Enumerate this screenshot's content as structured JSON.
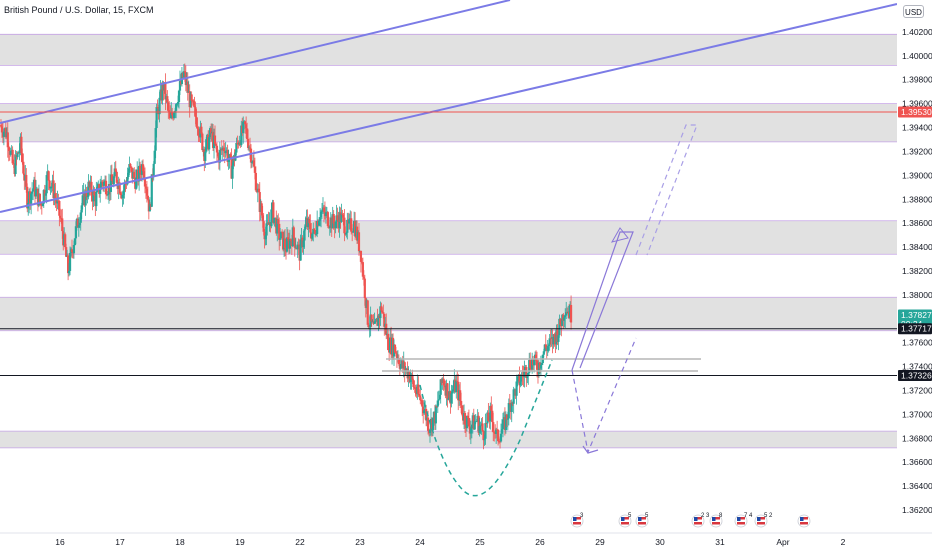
{
  "header": {
    "symbol_title": "British Pound / U.S. Dollar, 15, FXCM",
    "currency": "USD"
  },
  "colors": {
    "up_candle": "#26a69a",
    "down_candle": "#ef5350",
    "channel_line": "#7b7be6",
    "resistance_line": "#ef5350",
    "zone_fill": "#dcdcdc",
    "zone_border": "#c5a3e6",
    "projection_arrow": "#8a78d8",
    "current_price_tag": "#26a69a"
  },
  "price_axis": {
    "labels": [
      "1.40200",
      "1.40000",
      "1.39800",
      "1.39600",
      "1.39400",
      "1.39200",
      "1.39000",
      "1.38800",
      "1.38600",
      "1.38400",
      "1.38200",
      "1.38000",
      "1.37800",
      "1.37600",
      "1.37400",
      "1.37200",
      "1.37000",
      "1.36800",
      "1.36600",
      "1.36400",
      "1.36200"
    ]
  },
  "price_tags": [
    {
      "value": "1.39530",
      "style": "red"
    },
    {
      "value": "1.37827",
      "sub": "00:24",
      "style": "green"
    },
    {
      "value": "1.37717",
      "style": "black"
    },
    {
      "value": "1.37326",
      "style": "black"
    }
  ],
  "time_axis": {
    "labels": [
      "16",
      "17",
      "18",
      "19",
      "22",
      "23",
      "24",
      "25",
      "26",
      "29",
      "30",
      "31",
      "Apr",
      "2"
    ]
  },
  "event_icons": [
    {
      "badge": "3"
    },
    {
      "badge": "5"
    },
    {
      "badge": "5"
    },
    {
      "badge": "2 3"
    },
    {
      "badge": "8"
    },
    {
      "badge": "7 4"
    },
    {
      "badge": "5 2"
    },
    {
      "badge": ""
    }
  ],
  "chart_data": {
    "type": "candlestick",
    "symbol": "British Pound / U.S. Dollar",
    "interval": "15",
    "source": "FXCM",
    "ylim": [
      1.3615,
      1.4035
    ],
    "x_days": [
      "16",
      "17",
      "18",
      "19",
      "22",
      "23",
      "24",
      "25",
      "26",
      "29",
      "30",
      "31",
      "Apr",
      "2"
    ],
    "current_price": 1.37827,
    "countdown": "00:24",
    "horizontal_levels": [
      {
        "price": 1.3953,
        "color": "red"
      },
      {
        "price": 1.37717,
        "color": "black"
      },
      {
        "price": 1.37326,
        "color": "black"
      }
    ],
    "supply_demand_zones": [
      [
        1.3992,
        1.4018
      ],
      [
        1.3928,
        1.396
      ],
      [
        1.3834,
        1.3862
      ],
      [
        1.377,
        1.3798
      ],
      [
        1.3672,
        1.3686
      ]
    ],
    "trend_channel": [
      {
        "from": [
          "15",
          1.395
        ],
        "to": [
          "19",
          1.406
        ]
      },
      {
        "from": [
          "15",
          1.388
        ],
        "to": [
          "2",
          1.405
        ]
      }
    ],
    "price_path": [
      [
        0.0,
        1.3942
      ],
      [
        0.3,
        1.3935
      ],
      [
        0.6,
        1.3905
      ],
      [
        0.9,
        1.3925
      ],
      [
        1.2,
        1.388
      ],
      [
        1.5,
        1.389
      ],
      [
        1.8,
        1.3875
      ],
      [
        2.1,
        1.39
      ],
      [
        2.4,
        1.3885
      ],
      [
        2.7,
        1.386
      ],
      [
        3.0,
        1.382
      ],
      [
        3.3,
        1.385
      ],
      [
        3.6,
        1.3875
      ],
      [
        3.9,
        1.389
      ],
      [
        4.2,
        1.388
      ],
      [
        4.5,
        1.3895
      ],
      [
        4.8,
        1.389
      ],
      [
        5.1,
        1.39
      ],
      [
        5.4,
        1.3885
      ],
      [
        5.7,
        1.3905
      ],
      [
        6.0,
        1.3895
      ],
      [
        6.3,
        1.391
      ],
      [
        6.6,
        1.387
      ],
      [
        6.9,
        1.395
      ],
      [
        7.2,
        1.3975
      ],
      [
        7.5,
        1.3945
      ],
      [
        7.8,
        1.3965
      ],
      [
        8.1,
        1.3985
      ],
      [
        8.4,
        1.396
      ],
      [
        8.7,
        1.3945
      ],
      [
        9.0,
        1.392
      ],
      [
        9.3,
        1.3935
      ],
      [
        9.6,
        1.3915
      ],
      [
        9.9,
        1.3925
      ],
      [
        10.2,
        1.3905
      ],
      [
        10.5,
        1.393
      ],
      [
        10.8,
        1.394
      ],
      [
        11.1,
        1.3915
      ],
      [
        11.4,
        1.388
      ],
      [
        11.7,
        1.385
      ],
      [
        12.0,
        1.387
      ],
      [
        12.3,
        1.385
      ],
      [
        12.6,
        1.384
      ],
      [
        12.9,
        1.385
      ],
      [
        13.2,
        1.3835
      ],
      [
        13.5,
        1.386
      ],
      [
        13.8,
        1.385
      ],
      [
        14.1,
        1.387
      ],
      [
        14.4,
        1.3865
      ],
      [
        14.7,
        1.386
      ],
      [
        15.0,
        1.3865
      ],
      [
        15.3,
        1.3855
      ],
      [
        15.6,
        1.386
      ],
      [
        15.9,
        1.3835
      ],
      [
        16.2,
        1.378
      ],
      [
        16.5,
        1.377
      ],
      [
        16.8,
        1.379
      ],
      [
        17.1,
        1.376
      ],
      [
        17.4,
        1.3755
      ],
      [
        17.7,
        1.374
      ],
      [
        18.0,
        1.3735
      ],
      [
        18.3,
        1.372
      ],
      [
        18.6,
        1.371
      ],
      [
        18.9,
        1.369
      ],
      [
        19.2,
        1.37
      ],
      [
        19.5,
        1.373
      ],
      [
        19.8,
        1.3715
      ],
      [
        20.1,
        1.3725
      ],
      [
        20.4,
        1.37
      ],
      [
        20.7,
        1.369
      ],
      [
        21.0,
        1.3695
      ],
      [
        21.3,
        1.3685
      ],
      [
        21.6,
        1.37
      ],
      [
        21.9,
        1.368
      ],
      [
        22.2,
        1.369
      ],
      [
        22.5,
        1.371
      ],
      [
        22.8,
        1.3725
      ],
      [
        23.1,
        1.3735
      ],
      [
        23.4,
        1.3745
      ],
      [
        23.7,
        1.374
      ],
      [
        24.0,
        1.3755
      ],
      [
        24.3,
        1.376
      ],
      [
        24.6,
        1.377
      ],
      [
        24.9,
        1.379
      ],
      [
        25.2,
        1.3783
      ]
    ]
  }
}
